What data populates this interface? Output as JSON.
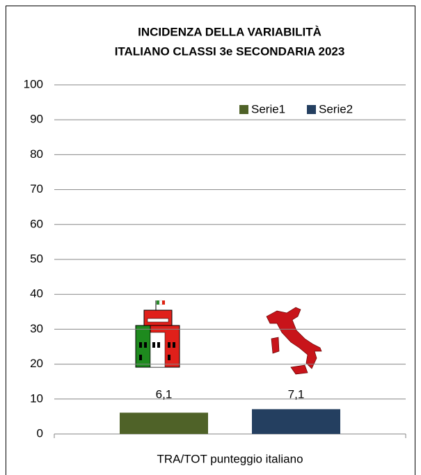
{
  "chart_data": {
    "type": "bar",
    "title": [
      "INCIDENZA DELLA VARIABILITÀ",
      "ITALIANO CLASSI 3e SECONDARIA 2023"
    ],
    "categories": [
      "TRA/TOT punteggio italiano"
    ],
    "series": [
      {
        "name": "Serie1",
        "color": "#4f6228",
        "values": [
          6.1
        ],
        "value_labels": [
          "6,1"
        ]
      },
      {
        "name": "Serie2",
        "color": "#243f60",
        "values": [
          7.1
        ],
        "value_labels": [
          "7,1"
        ]
      }
    ],
    "ylim": [
      0,
      100
    ],
    "yticks": [
      0,
      10,
      20,
      30,
      40,
      50,
      60,
      70,
      80,
      90,
      100
    ],
    "grid": true,
    "legend": "top-right"
  }
}
